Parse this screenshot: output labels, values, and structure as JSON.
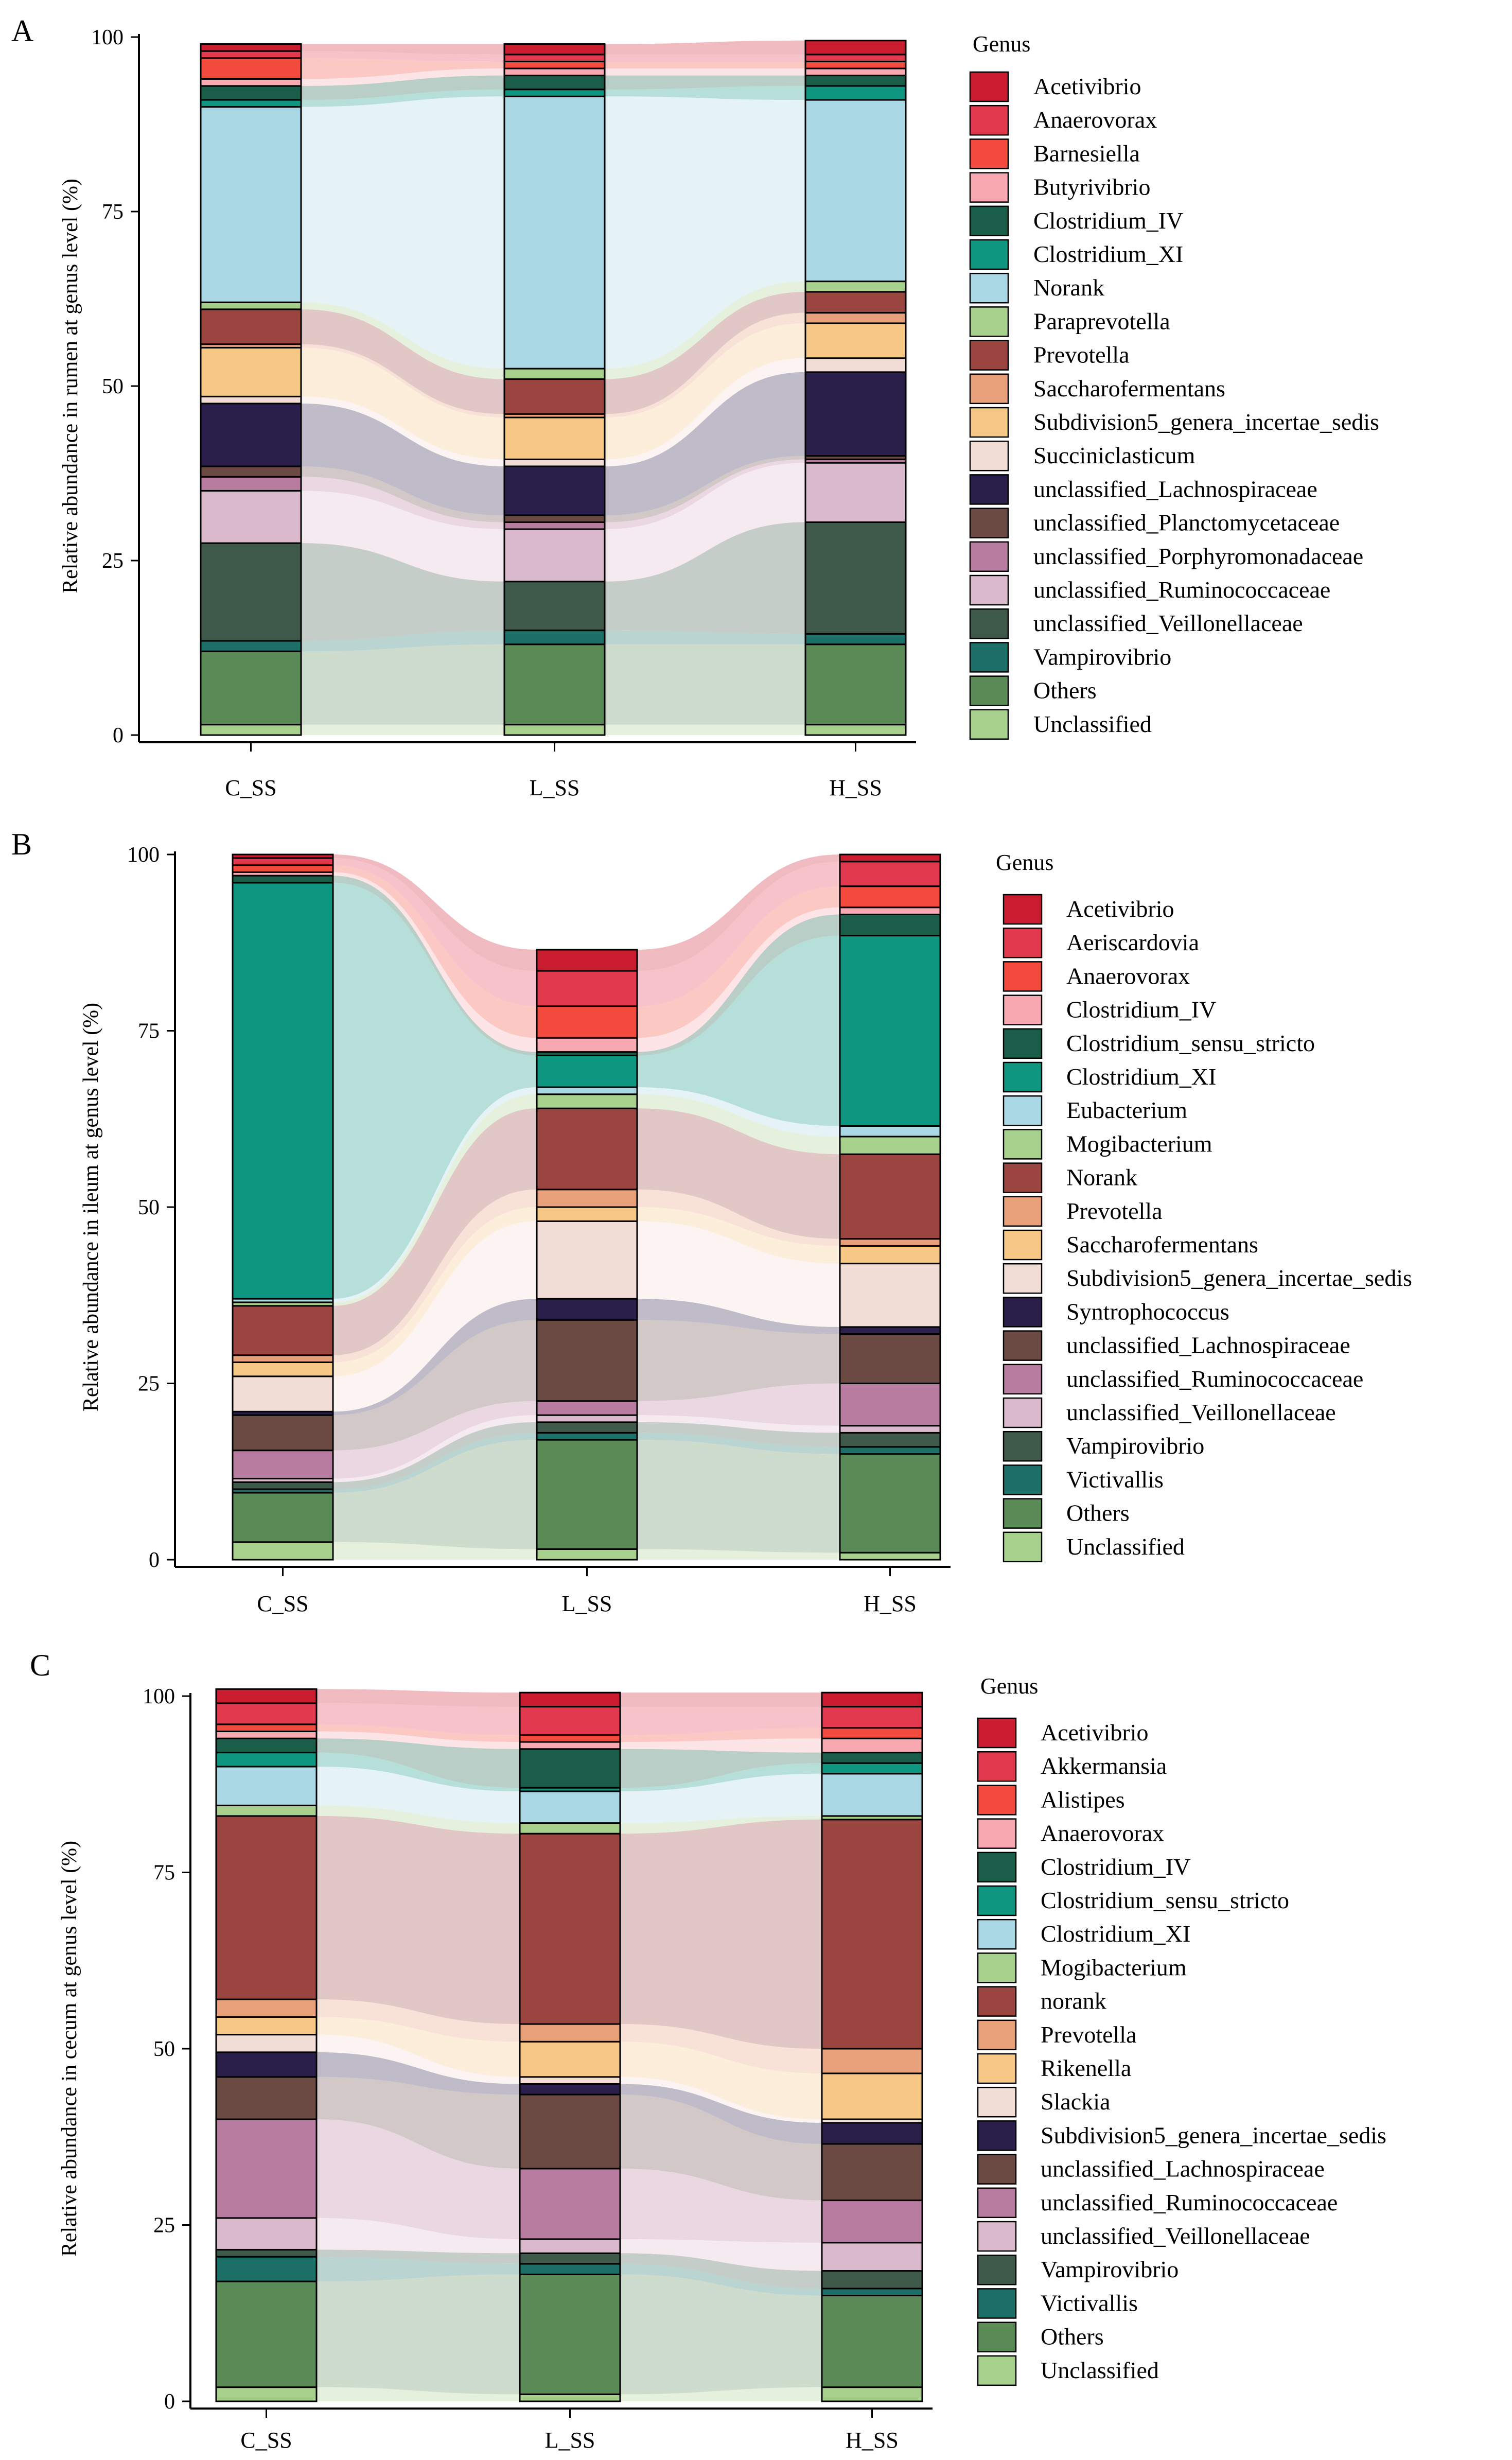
{
  "chart_data": [
    {
      "panel": "A",
      "type": "stacked-bar-alluvial",
      "ylabel": "Relative abundance in rumen at genus level (%)",
      "yticks": [
        0,
        25,
        50,
        75,
        100
      ],
      "ylim": [
        0,
        100
      ],
      "categories": [
        "C_SS",
        "L_SS",
        "H_SS"
      ],
      "legend_title": "Genus",
      "series": [
        {
          "name": "Unclassified",
          "color": "#a8d08d",
          "values": [
            1.5,
            1.5,
            1.5
          ]
        },
        {
          "name": "Others",
          "color": "#5a8a55",
          "values": [
            10.5,
            11.5,
            11.5
          ]
        },
        {
          "name": "Vampirovibrio",
          "color": "#1c7068",
          "values": [
            1.5,
            2,
            1.5
          ]
        },
        {
          "name": "unclassified_Veillonellaceae",
          "color": "#3f5a4a",
          "values": [
            14,
            7,
            16
          ]
        },
        {
          "name": "unclassified_Ruminococcaceae",
          "color": "#dbb9cc",
          "values": [
            7.5,
            7.5,
            8.5
          ]
        },
        {
          "name": "unclassified_Porphyromonadaceae",
          "color": "#b87ca0",
          "values": [
            2,
            1,
            0.5
          ]
        },
        {
          "name": "unclassified_Planctomycetaceae",
          "color": "#6b4a44",
          "values": [
            1.5,
            1,
            0.5
          ]
        },
        {
          "name": "unclassified_Lachnospiraceae",
          "color": "#2a1f4a",
          "values": [
            9,
            7,
            12
          ]
        },
        {
          "name": "Succiniclasticum",
          "color": "#f2dcd6",
          "values": [
            1,
            1,
            2
          ]
        },
        {
          "name": "Subdivision5_genera_incertae_sedis",
          "color": "#f6c785",
          "values": [
            7,
            6,
            5
          ]
        },
        {
          "name": "Saccharofermentans",
          "color": "#e8a07a",
          "values": [
            0.5,
            0.5,
            1.5
          ]
        },
        {
          "name": "Prevotella",
          "color": "#9b4540",
          "values": [
            5,
            5,
            3
          ]
        },
        {
          "name": "Paraprevotella",
          "color": "#a8d08d",
          "values": [
            1,
            1.5,
            1.5
          ]
        },
        {
          "name": "Norank",
          "color": "#a9d8e4",
          "values": [
            28,
            39,
            26
          ]
        },
        {
          "name": "Clostridium_XI",
          "color": "#0e9680",
          "values": [
            1,
            1,
            2
          ]
        },
        {
          "name": "Clostridium_IV",
          "color": "#1a5e4a",
          "values": [
            2,
            2,
            1.5
          ]
        },
        {
          "name": "Butyrivibrio",
          "color": "#f7a8b0",
          "values": [
            1,
            1,
            1
          ]
        },
        {
          "name": "Barnesiella",
          "color": "#f24a3c",
          "values": [
            3,
            1,
            1
          ]
        },
        {
          "name": "Anaerovorax",
          "color": "#e2394f",
          "values": [
            1,
            1,
            1
          ]
        },
        {
          "name": "Acetivibrio",
          "color": "#c91c2e",
          "values": [
            1,
            1.5,
            2
          ]
        }
      ]
    },
    {
      "panel": "B",
      "type": "stacked-bar-alluvial",
      "ylabel": "Relative abundance in ileum at genus level (%)",
      "yticks": [
        0,
        25,
        50,
        75,
        100
      ],
      "ylim": [
        0,
        100
      ],
      "categories": [
        "C_SS",
        "L_SS",
        "H_SS"
      ],
      "legend_title": "Genus",
      "series": [
        {
          "name": "Unclassified",
          "color": "#a8d08d",
          "values": [
            2.5,
            1.5,
            1
          ]
        },
        {
          "name": "Others",
          "color": "#5a8a55",
          "values": [
            7,
            15.5,
            14
          ]
        },
        {
          "name": "Victivallis",
          "color": "#1c7068",
          "values": [
            0.5,
            1,
            1
          ]
        },
        {
          "name": "Vampirovibrio",
          "color": "#3f5a4a",
          "values": [
            1,
            1.5,
            2
          ]
        },
        {
          "name": "unclassified_Veillonellaceae",
          "color": "#dbb9cc",
          "values": [
            0.5,
            1,
            1
          ]
        },
        {
          "name": "unclassified_Ruminococcaceae",
          "color": "#b87ca0",
          "values": [
            4,
            2,
            6
          ]
        },
        {
          "name": "unclassified_Lachnospiraceae",
          "color": "#6b4a44",
          "values": [
            5,
            11.5,
            7
          ]
        },
        {
          "name": "Syntrophococcus",
          "color": "#2a1f4a",
          "values": [
            0.5,
            3,
            1
          ]
        },
        {
          "name": "Subdivision5_genera_incertae_sedis",
          "color": "#f2dcd6",
          "values": [
            5,
            11,
            9
          ]
        },
        {
          "name": "Saccharofermentans",
          "color": "#f6c785",
          "values": [
            2,
            2,
            2.5
          ]
        },
        {
          "name": "Prevotella",
          "color": "#e8a07a",
          "values": [
            1,
            2.5,
            1
          ]
        },
        {
          "name": "Norank",
          "color": "#9b4540",
          "values": [
            7,
            11.5,
            12
          ]
        },
        {
          "name": "Mogibacterium",
          "color": "#a8d08d",
          "values": [
            0.5,
            2,
            2.5
          ]
        },
        {
          "name": "Eubacterium",
          "color": "#a9d8e4",
          "values": [
            0.5,
            1,
            1.5
          ]
        },
        {
          "name": "Clostridium_XI",
          "color": "#0e9680",
          "values": [
            59,
            4.5,
            27
          ]
        },
        {
          "name": "Clostridium_sensu_stricto",
          "color": "#1a5e4a",
          "values": [
            1,
            0.5,
            3
          ]
        },
        {
          "name": "Clostridium_IV",
          "color": "#f7a8b0",
          "values": [
            0.5,
            2,
            1
          ]
        },
        {
          "name": "Anaerovorax",
          "color": "#f24a3c",
          "values": [
            1,
            4.5,
            3
          ]
        },
        {
          "name": "Aeriscardovia",
          "color": "#e2394f",
          "values": [
            1,
            5,
            3.5
          ]
        },
        {
          "name": "Acetivibrio",
          "color": "#c91c2e",
          "values": [
            0.5,
            3,
            1
          ]
        }
      ]
    },
    {
      "panel": "C",
      "type": "stacked-bar-alluvial",
      "ylabel": "Relative abundance in cecum at genus level (%)",
      "yticks": [
        0,
        25,
        50,
        75,
        100
      ],
      "ylim": [
        0,
        100
      ],
      "categories": [
        "C_SS",
        "L_SS",
        "H_SS"
      ],
      "legend_title": "Genus",
      "series": [
        {
          "name": "Unclassified",
          "color": "#a8d08d",
          "values": [
            2,
            1,
            2
          ]
        },
        {
          "name": "Others",
          "color": "#5a8a55",
          "values": [
            15,
            17,
            13
          ]
        },
        {
          "name": "Victivallis",
          "color": "#1c7068",
          "values": [
            3.5,
            1.5,
            1
          ]
        },
        {
          "name": "Vampirovibrio",
          "color": "#3f5a4a",
          "values": [
            1,
            1.5,
            2.5
          ]
        },
        {
          "name": "unclassified_Veillonellaceae",
          "color": "#dbb9cc",
          "values": [
            4.5,
            2,
            4
          ]
        },
        {
          "name": "unclassified_Ruminococcaceae",
          "color": "#b87ca0",
          "values": [
            14,
            10,
            6
          ]
        },
        {
          "name": "unclassified_Lachnospiraceae",
          "color": "#6b4a44",
          "values": [
            6,
            10.5,
            8
          ]
        },
        {
          "name": "Subdivision5_genera_incertae_sedis",
          "color": "#2a1f4a",
          "values": [
            3.5,
            1.5,
            3
          ]
        },
        {
          "name": "Slackia",
          "color": "#f2dcd6",
          "values": [
            2.5,
            1,
            0.5
          ]
        },
        {
          "name": "Rikenella",
          "color": "#f6c785",
          "values": [
            2.5,
            5,
            6.5
          ]
        },
        {
          "name": "Prevotella",
          "color": "#e8a07a",
          "values": [
            2.5,
            2.5,
            3.5
          ]
        },
        {
          "name": "norank",
          "color": "#9b4540",
          "values": [
            26,
            27,
            32.5
          ]
        },
        {
          "name": "Mogibacterium",
          "color": "#a8d08d",
          "values": [
            1.5,
            1.5,
            0.5
          ]
        },
        {
          "name": "Clostridium_XI",
          "color": "#a9d8e4",
          "values": [
            5.5,
            4.5,
            6
          ]
        },
        {
          "name": "Clostridium_sensu_stricto",
          "color": "#0e9680",
          "values": [
            2,
            0.5,
            1.5
          ]
        },
        {
          "name": "Clostridium_IV",
          "color": "#1a5e4a",
          "values": [
            2,
            5.5,
            1.5
          ]
        },
        {
          "name": "Anaerovorax",
          "color": "#f7a8b0",
          "values": [
            1,
            1,
            2
          ]
        },
        {
          "name": "Alistipes",
          "color": "#f24a3c",
          "values": [
            1,
            1,
            1.5
          ]
        },
        {
          "name": "Akkermansia",
          "color": "#e2394f",
          "values": [
            3,
            4,
            3
          ]
        },
        {
          "name": "Acetivibrio",
          "color": "#c91c2e",
          "values": [
            2,
            2,
            2
          ]
        }
      ]
    }
  ]
}
